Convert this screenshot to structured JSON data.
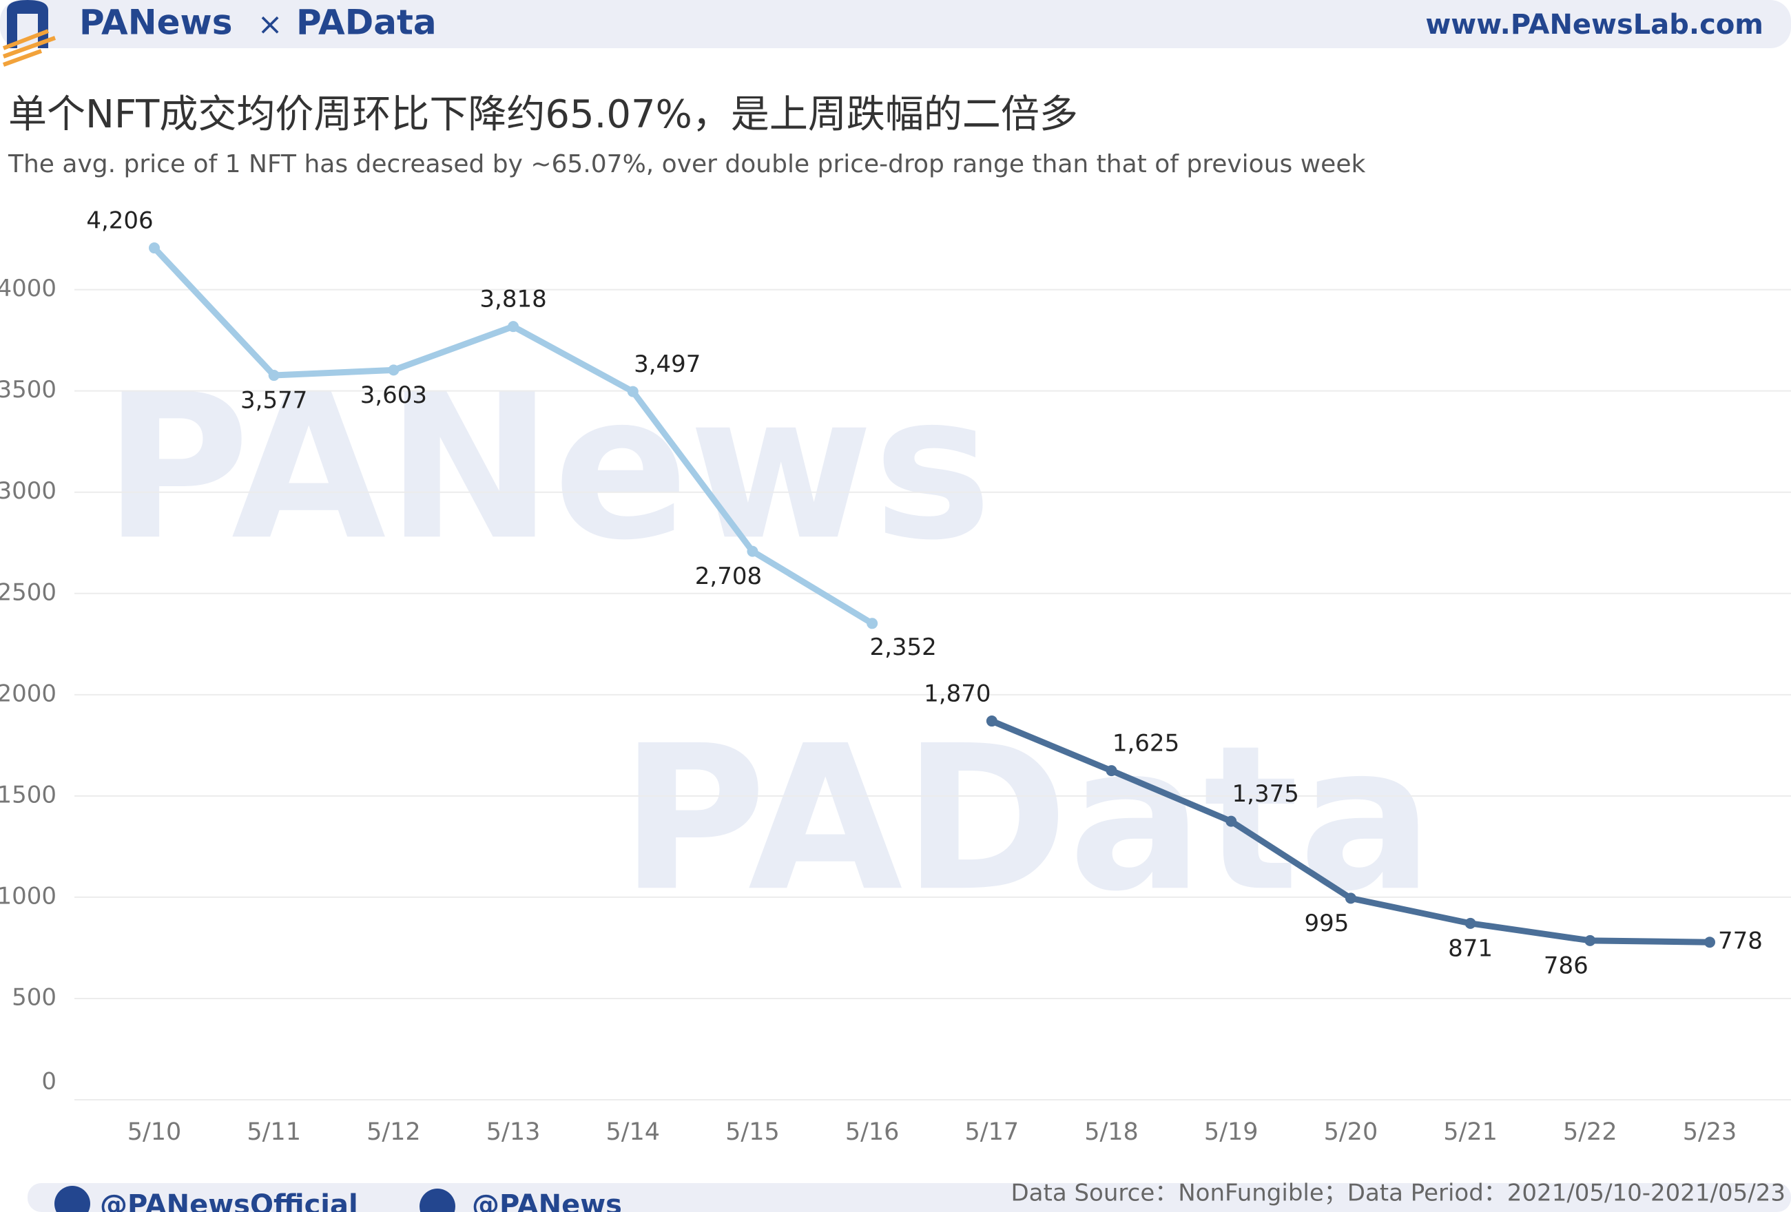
{
  "header": {
    "brand_left": "PANews",
    "times": "×",
    "brand_right": "PAData",
    "url": "www.PANewsLab.com"
  },
  "watermarks": [
    "PANews",
    "PAData"
  ],
  "chart_data": {
    "type": "line",
    "title": "单个NFT成交均价周环比下降约65.07%，是上周跌幅的二倍多",
    "subtitle": "The avg. price of 1 NFT has decreased by ~65.07%, over double price-drop range than that of previous week",
    "categories": [
      "5/10",
      "5/11",
      "5/12",
      "5/13",
      "5/14",
      "5/15",
      "5/16",
      "5/17",
      "5/18",
      "5/19",
      "5/20",
      "5/21",
      "5/22",
      "5/23"
    ],
    "series": [
      {
        "color": "#a3cbe6",
        "values": [
          4206,
          3577,
          3603,
          3818,
          3497,
          2708,
          2352,
          null,
          null,
          null,
          null,
          null,
          null,
          null
        ],
        "value_labels": [
          "4,206",
          "3,577",
          "3,603",
          "3,818",
          "3,497",
          "2,708",
          "2,352",
          null,
          null,
          null,
          null,
          null,
          null,
          null
        ]
      },
      {
        "color": "#4b6f98",
        "values": [
          null,
          null,
          null,
          null,
          null,
          null,
          null,
          1870,
          1625,
          1375,
          995,
          871,
          786,
          778
        ],
        "value_labels": [
          null,
          null,
          null,
          null,
          null,
          null,
          null,
          "1,870",
          "1,625",
          "1,375",
          "995",
          "871",
          "786",
          "778"
        ]
      }
    ],
    "ylim": [
      0,
      4400
    ],
    "yticks": [
      0,
      500,
      1000,
      1500,
      2000,
      2500,
      3000,
      3500,
      4000
    ],
    "grid": true
  },
  "footer": {
    "twitter": "@PANewsOfficial",
    "weibo": "@PANews",
    "source": "Data Source：NonFungible；Data Period：2021/05/10-2021/05/23"
  }
}
